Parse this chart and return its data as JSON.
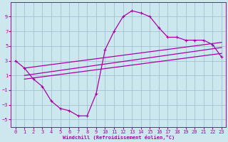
{
  "background_color": "#cce8ee",
  "line_color": "#aa00aa",
  "grid_color": "#99bbcc",
  "xlim": [
    -0.5,
    23.5
  ],
  "ylim": [
    -6,
    11
  ],
  "xticks": [
    0,
    1,
    2,
    3,
    4,
    5,
    6,
    7,
    8,
    9,
    10,
    11,
    12,
    13,
    14,
    15,
    16,
    17,
    18,
    19,
    20,
    21,
    22,
    23
  ],
  "yticks": [
    -5,
    -3,
    -1,
    1,
    3,
    5,
    7,
    9
  ],
  "xlabel": "Windchill (Refroidissement éolien,°C)",
  "line1_x": [
    0,
    1,
    2,
    3,
    4,
    5,
    6,
    7,
    8,
    9,
    10,
    11,
    12,
    13,
    14,
    15,
    16,
    17,
    18,
    19,
    20,
    21,
    22,
    23
  ],
  "line1_y": [
    3.0,
    2.0,
    0.5,
    -0.5,
    -2.5,
    -3.5,
    -3.8,
    -4.5,
    -4.5,
    -1.5,
    4.5,
    7.0,
    9.0,
    9.8,
    9.5,
    9.0,
    7.5,
    6.2,
    6.2,
    5.8,
    5.8,
    5.8,
    5.2,
    3.5
  ],
  "line2_x": [
    1,
    23
  ],
  "line2_y": [
    2.0,
    3.5
  ],
  "line3_x": [
    1,
    23
  ],
  "line3_y": [
    0.5,
    5.0
  ],
  "line4_x": [
    1,
    23
  ],
  "line4_y": [
    -0.5,
    4.0
  ]
}
